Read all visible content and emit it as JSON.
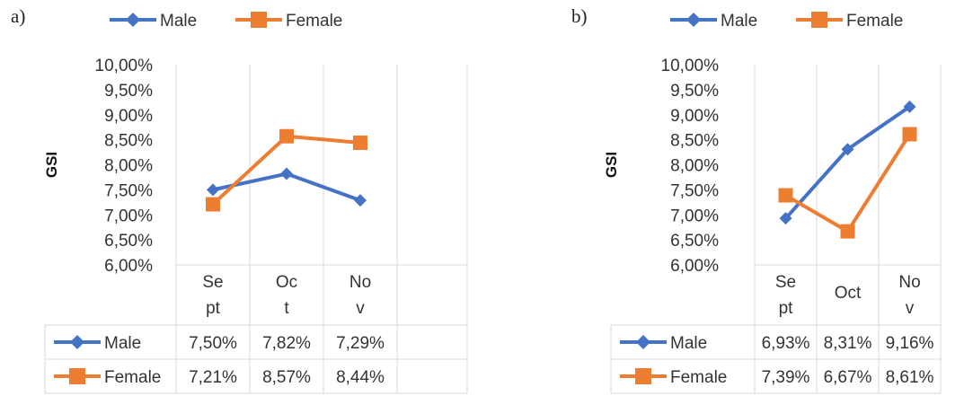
{
  "colors": {
    "male": "#4472c4",
    "female": "#ed7d31",
    "grid": "#d9d9d9"
  },
  "chart_data": [
    {
      "type": "line",
      "panel_label": "a)",
      "categories": [
        "Se\npt",
        "Oc\nt",
        "No\nv"
      ],
      "ylabel": "GSI",
      "ylim": [
        6.0,
        10.0
      ],
      "yticks": [
        "6,00%",
        "6,50%",
        "7,00%",
        "7,50%",
        "8,00%",
        "8,50%",
        "9,00%",
        "9,50%",
        "10,00%"
      ],
      "legend": "top",
      "grid": true,
      "series": [
        {
          "name": "Male",
          "marker": "diamond",
          "values": [
            7.5,
            7.82,
            7.29
          ],
          "labels": [
            "7,50%",
            "7,82%",
            "7,29%"
          ]
        },
        {
          "name": "Female",
          "marker": "square",
          "values": [
            7.21,
            8.57,
            8.44
          ],
          "labels": [
            "7,21%",
            "8,57%",
            "8,44%"
          ]
        }
      ]
    },
    {
      "type": "line",
      "panel_label": "b)",
      "categories": [
        "Se\npt",
        "Oct",
        "No\nv"
      ],
      "ylabel": "GSI",
      "ylim": [
        6.0,
        10.0
      ],
      "yticks": [
        "6,00%",
        "6,50%",
        "7,00%",
        "7,50%",
        "8,00%",
        "8,50%",
        "9,00%",
        "9,50%",
        "10,00%"
      ],
      "legend": "top",
      "grid": true,
      "series": [
        {
          "name": "Male",
          "marker": "diamond",
          "values": [
            6.93,
            8.31,
            9.16
          ],
          "labels": [
            "6,93%",
            "8,31%",
            "9,16%"
          ]
        },
        {
          "name": "Female",
          "marker": "square",
          "values": [
            7.39,
            6.67,
            8.61
          ],
          "labels": [
            "7,39%",
            "6,67%",
            "8,61%"
          ]
        }
      ]
    }
  ]
}
